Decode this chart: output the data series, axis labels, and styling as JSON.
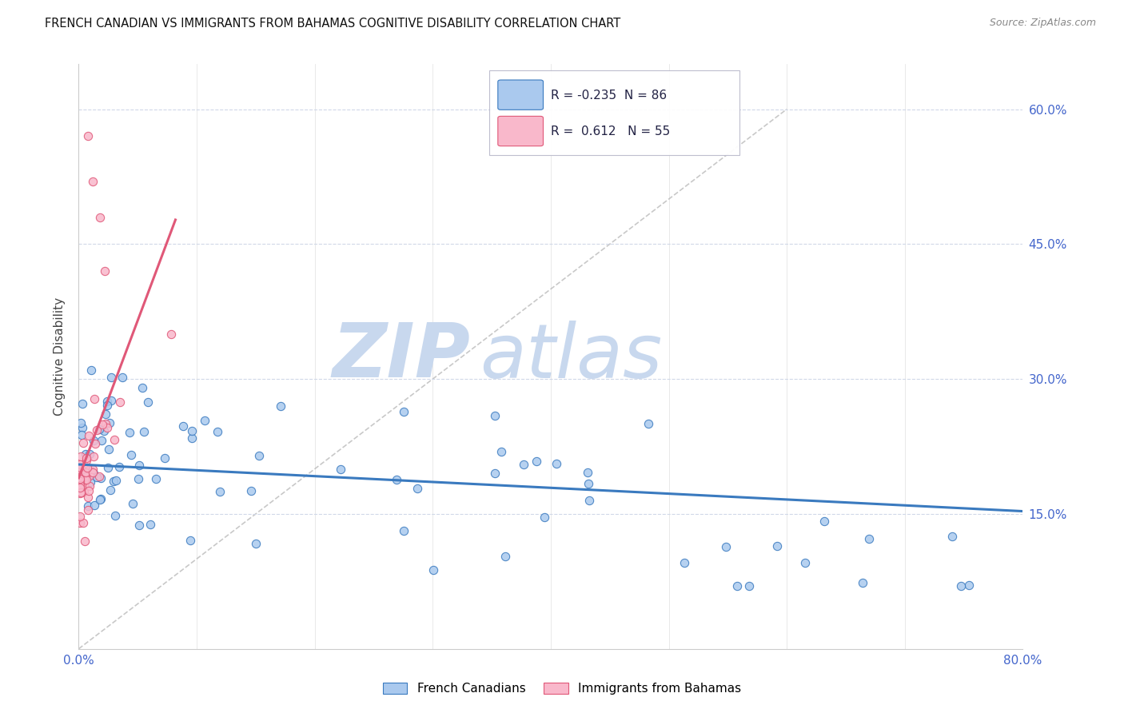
{
  "title": "FRENCH CANADIAN VS IMMIGRANTS FROM BAHAMAS COGNITIVE DISABILITY CORRELATION CHART",
  "source": "Source: ZipAtlas.com",
  "ylabel": "Cognitive Disability",
  "yticks": [
    0.15,
    0.3,
    0.45,
    0.6
  ],
  "ytick_labels": [
    "15.0%",
    "30.0%",
    "45.0%",
    "60.0%"
  ],
  "xmin": 0.0,
  "xmax": 0.8,
  "ymin": 0.0,
  "ymax": 0.65,
  "blue_color": "#aac9ee",
  "pink_color": "#f9b8cb",
  "blue_line_color": "#3a7abf",
  "pink_line_color": "#e05878",
  "grid_color": "#d0d8e8",
  "axis_color": "#4466cc",
  "legend_R_blue": "-0.235",
  "legend_N_blue": "86",
  "legend_R_pink": "0.612",
  "legend_N_pink": "55",
  "blue_label": "French Canadians",
  "pink_label": "Immigrants from Bahamas",
  "watermark_zip_color": "#c8d8ee",
  "watermark_atlas_color": "#c8d8ee",
  "background_color": "#ffffff"
}
